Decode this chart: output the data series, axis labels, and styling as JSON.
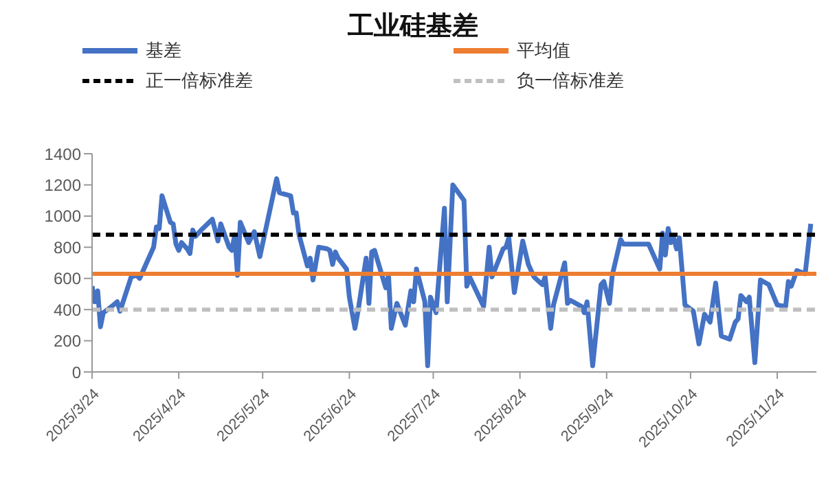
{
  "chart_data": {
    "type": "line",
    "title": "工业硅基差",
    "x": [
      "2025-03-24",
      "2025-03-25",
      "2025-03-26",
      "2025-03-27",
      "2025-03-28",
      "2025-03-31",
      "2025-04-02",
      "2025-04-03",
      "2025-04-07",
      "2025-04-09",
      "2025-04-10",
      "2025-04-15",
      "2025-04-16",
      "2025-04-17",
      "2025-04-18",
      "2025-04-21",
      "2025-04-22",
      "2025-04-23",
      "2025-04-24",
      "2025-04-25",
      "2025-04-27",
      "2025-04-28",
      "2025-04-29",
      "2025-04-30",
      "2025-05-02",
      "2025-05-06",
      "2025-05-08",
      "2025-05-09",
      "2025-05-12",
      "2025-05-13",
      "2025-05-14",
      "2025-05-15",
      "2025-05-16",
      "2025-05-19",
      "2025-05-21",
      "2025-05-23",
      "2025-05-26",
      "2025-05-29",
      "2025-05-30",
      "2025-06-03",
      "2025-06-04",
      "2025-06-05",
      "2025-06-06",
      "2025-06-09",
      "2025-06-10",
      "2025-06-11",
      "2025-06-13",
      "2025-06-16",
      "2025-06-17",
      "2025-06-18",
      "2025-06-19",
      "2025-06-20",
      "2025-06-23",
      "2025-06-24",
      "2025-06-26",
      "2025-06-27",
      "2025-06-30",
      "2025-07-01",
      "2025-07-02",
      "2025-07-03",
      "2025-07-04",
      "2025-07-07",
      "2025-07-08",
      "2025-07-09",
      "2025-07-11",
      "2025-07-14",
      "2025-07-16",
      "2025-07-17",
      "2025-07-18",
      "2025-07-21",
      "2025-07-22",
      "2025-07-23",
      "2025-07-25",
      "2025-07-28",
      "2025-07-29",
      "2025-07-31",
      "2025-08-04",
      "2025-08-05",
      "2025-08-06",
      "2025-08-11",
      "2025-08-13",
      "2025-08-14",
      "2025-08-18",
      "2025-08-19",
      "2025-08-20",
      "2025-08-22",
      "2025-08-25",
      "2025-08-27",
      "2025-08-29",
      "2025-09-01",
      "2025-09-02",
      "2025-09-04",
      "2025-09-05",
      "2025-09-09",
      "2025-09-10",
      "2025-09-11",
      "2025-09-15",
      "2025-09-16",
      "2025-09-17",
      "2025-09-19",
      "2025-09-22",
      "2025-09-23",
      "2025-09-25",
      "2025-09-26",
      "2025-09-29",
      "2025-09-30",
      "2025-10-09",
      "2025-10-13",
      "2025-10-14",
      "2025-10-15",
      "2025-10-16",
      "2025-10-17",
      "2025-10-18",
      "2025-10-19",
      "2025-10-20",
      "2025-10-22",
      "2025-10-25",
      "2025-10-27",
      "2025-10-29",
      "2025-10-31",
      "2025-11-02",
      "2025-11-04",
      "2025-11-07",
      "2025-11-09",
      "2025-11-10",
      "2025-11-11",
      "2025-11-13",
      "2025-11-14",
      "2025-11-16",
      "2025-11-18",
      "2025-11-21",
      "2025-11-24",
      "2025-11-27",
      "2025-11-28",
      "2025-11-29",
      "2025-12-01",
      "2025-12-04",
      "2025-12-06"
    ],
    "series": [
      {
        "name": "基差",
        "color": "#4472c4",
        "values": [
          550,
          450,
          520,
          290,
          380,
          420,
          450,
          390,
          610,
          620,
          600,
          800,
          930,
          920,
          1130,
          960,
          950,
          820,
          780,
          830,
          790,
          760,
          910,
          870,
          910,
          980,
          840,
          950,
          800,
          780,
          880,
          620,
          960,
          830,
          900,
          740,
          990,
          1240,
          1150,
          1130,
          1020,
          1020,
          880,
          680,
          730,
          590,
          800,
          790,
          780,
          690,
          770,
          730,
          660,
          480,
          280,
          380,
          730,
          440,
          770,
          780,
          720,
          540,
          620,
          280,
          440,
          300,
          520,
          450,
          660,
          450,
          40,
          480,
          380,
          1050,
          450,
          1200,
          1100,
          550,
          610,
          420,
          800,
          610,
          790,
          800,
          860,
          510,
          840,
          690,
          610,
          560,
          610,
          280,
          430,
          700,
          440,
          460,
          420,
          380,
          450,
          40,
          560,
          580,
          440,
          620,
          850,
          820,
          820,
          660,
          890,
          750,
          920,
          830,
          860,
          790,
          860,
          430,
          390,
          180,
          370,
          320,
          570,
          230,
          210,
          320,
          340,
          490,
          450,
          480,
          60,
          590,
          560,
          430,
          420,
          580,
          550,
          650,
          630,
          950
        ]
      },
      {
        "name": "平均值",
        "color": "#ed7d31",
        "x": [
          "2025-03-24",
          "2025-12-08"
        ],
        "values": [
          630,
          630
        ]
      },
      {
        "name": "正一倍标准差",
        "color": "#000000",
        "line_style": "dashed",
        "x": [
          "2025-03-24",
          "2025-12-08"
        ],
        "values": [
          880,
          880
        ]
      },
      {
        "name": "负一倍标准差",
        "color": "#bfbfbf",
        "line_style": "dashed",
        "x": [
          "2025-03-24",
          "2025-12-08"
        ],
        "values": [
          400,
          400
        ]
      }
    ],
    "xlim": [
      "2025-03-24",
      "2025-12-08"
    ],
    "xticks": [
      {
        "value": "2025-03-24",
        "label": "2025/3/24"
      },
      {
        "value": "2025-04-24",
        "label": "2025/4/24"
      },
      {
        "value": "2025-05-24",
        "label": "2025/5/24"
      },
      {
        "value": "2025-06-24",
        "label": "2025/6/24"
      },
      {
        "value": "2025-07-24",
        "label": "2025/7/24"
      },
      {
        "value": "2025-08-24",
        "label": "2025/8/24"
      },
      {
        "value": "2025-09-24",
        "label": "2025/9/24"
      },
      {
        "value": "2025-10-24",
        "label": "2025/10/24"
      },
      {
        "value": "2025-11-24",
        "label": "2025/11/24"
      }
    ],
    "ylim": [
      0,
      1400
    ],
    "yticks": [
      0,
      200,
      400,
      600,
      800,
      1000,
      1200,
      1400
    ],
    "grid": false,
    "legend": "top",
    "marker": "none"
  }
}
